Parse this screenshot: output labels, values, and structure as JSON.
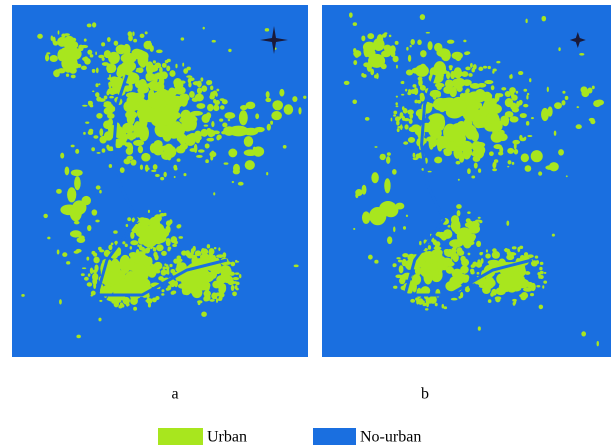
{
  "panels": [
    {
      "label": "a"
    },
    {
      "label": "b"
    }
  ],
  "legend": [
    {
      "label": "Urban",
      "color": "#a8e61e"
    },
    {
      "label": "No-urban",
      "color": "#1a6fe0"
    }
  ]
}
